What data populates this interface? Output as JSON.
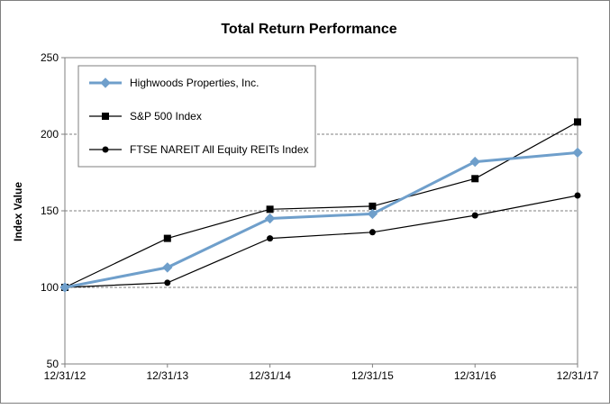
{
  "chart_data": {
    "type": "line",
    "title": "Total Return Performance",
    "xlabel": "",
    "ylabel": "Index Value",
    "x": [
      "12/31/12",
      "12/31/13",
      "12/31/14",
      "12/31/15",
      "12/31/16",
      "12/31/17"
    ],
    "ylim": [
      50,
      250
    ],
    "yticks": [
      50,
      100,
      150,
      200,
      250
    ],
    "grid": "horizontal-dashed",
    "legend_position": "top-left",
    "series": [
      {
        "name": "Highwoods Properties, Inc.",
        "marker": "diamond",
        "color": "#6f9fcb",
        "values": [
          100,
          113,
          145,
          148,
          182,
          188
        ]
      },
      {
        "name": "S&P 500 Index",
        "marker": "square",
        "color": "#000000",
        "values": [
          100,
          132,
          151,
          153,
          171,
          208
        ]
      },
      {
        "name": "FTSE NAREIT All Equity REITs Index",
        "marker": "circle",
        "color": "#000000",
        "values": [
          100,
          103,
          132,
          136,
          147,
          160
        ]
      }
    ]
  }
}
